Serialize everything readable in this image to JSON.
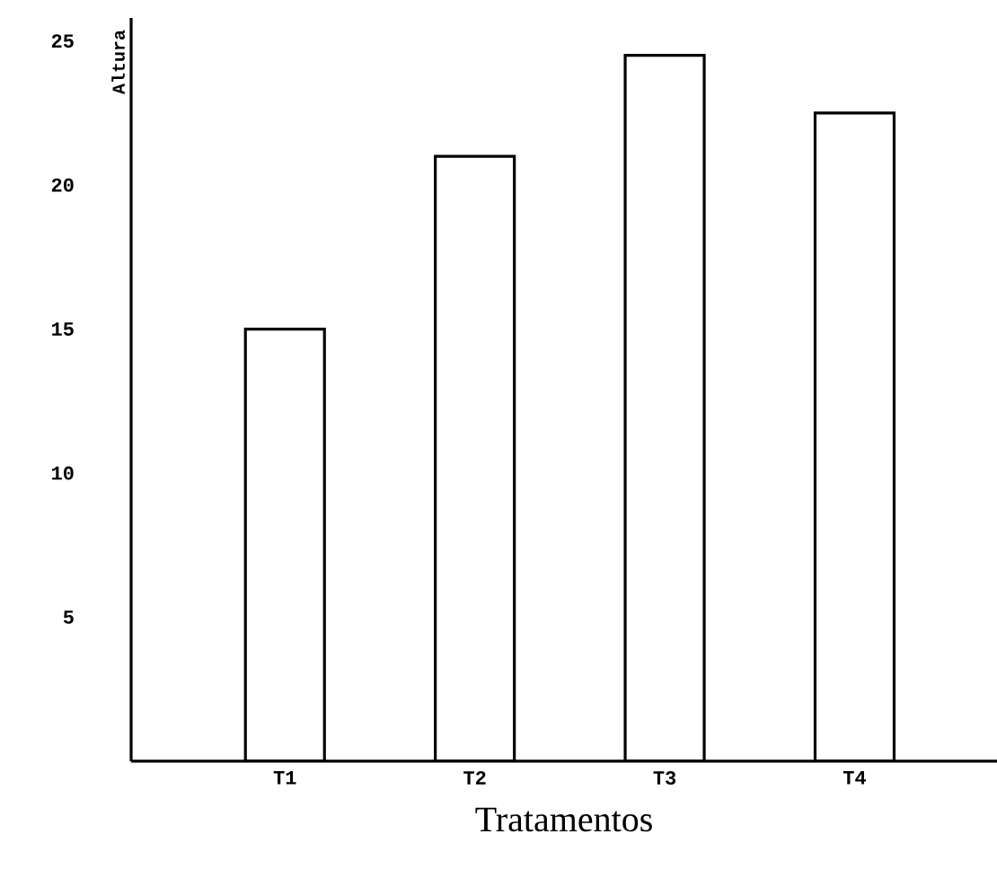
{
  "chart_data": {
    "type": "bar",
    "xlabel": "Tratamentos",
    "ylabel": "Altura",
    "categories": [
      "T1",
      "T2",
      "T3",
      "T4"
    ],
    "values": [
      15,
      21,
      24.5,
      22.5
    ],
    "color": "#000000",
    "ylim": [
      0,
      25.8
    ],
    "yticks": [
      5,
      10,
      15,
      20,
      25
    ],
    "grid": false
  }
}
